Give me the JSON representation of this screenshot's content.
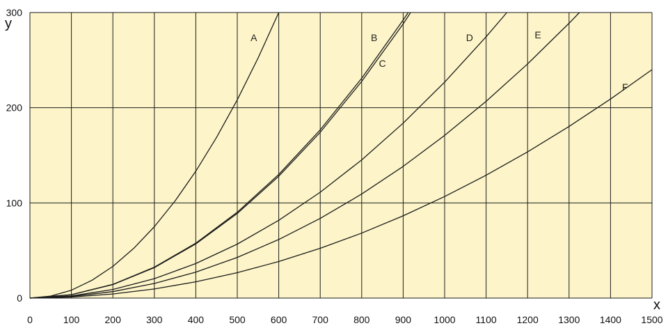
{
  "colors": {
    "plot_background": "#fdf5c9",
    "grid": "#1a1a1a",
    "curve": "#1a1a1a"
  },
  "chart_data": {
    "type": "line",
    "title": "",
    "xlabel": "x",
    "ylabel": "y",
    "xlim": [
      0,
      1500
    ],
    "ylim": [
      0,
      300
    ],
    "grid": true,
    "x_ticks": [
      0,
      100,
      200,
      300,
      400,
      500,
      600,
      700,
      800,
      900,
      1000,
      1100,
      1200,
      1300,
      1400,
      1500
    ],
    "y_ticks": [
      0,
      100,
      200,
      300
    ],
    "series": [
      {
        "name": "A",
        "x": [
          0,
          50,
          100,
          150,
          200,
          250,
          300,
          350,
          400,
          450,
          500,
          550,
          600
        ],
        "y": [
          0,
          2.1,
          8.3,
          18.8,
          33.3,
          52.1,
          75,
          102.1,
          133.3,
          168.8,
          208.3,
          252.1,
          300
        ]
      },
      {
        "name": "B",
        "x": [
          0,
          100,
          200,
          300,
          400,
          500,
          600,
          700,
          800,
          900,
          918
        ],
        "y": [
          0,
          3.6,
          14.2,
          32.0,
          56.9,
          88.9,
          128.0,
          174.2,
          227.6,
          288.0,
          300
        ]
      },
      {
        "name": "C",
        "x": [
          0,
          100,
          200,
          300,
          400,
          500,
          600,
          700,
          800,
          900,
          912
        ],
        "y": [
          0,
          3.6,
          14.4,
          32.5,
          57.7,
          90.2,
          129.9,
          176.8,
          230.9,
          292.2,
          300
        ]
      },
      {
        "name": "D",
        "x": [
          0,
          100,
          200,
          300,
          400,
          500,
          600,
          700,
          800,
          900,
          1000,
          1100,
          1150
        ],
        "y": [
          0,
          2.3,
          9.1,
          20.4,
          36.3,
          56.7,
          81.7,
          111.2,
          145.2,
          183.8,
          226.9,
          274.5,
          300
        ]
      },
      {
        "name": "E",
        "x": [
          0,
          100,
          200,
          300,
          400,
          500,
          600,
          700,
          800,
          900,
          1000,
          1100,
          1200,
          1300,
          1325
        ],
        "y": [
          0,
          1.7,
          6.8,
          15.4,
          27.3,
          42.7,
          61.5,
          83.7,
          109.3,
          138.4,
          170.9,
          206.7,
          246.0,
          288.7,
          300
        ]
      },
      {
        "name": "F",
        "x": [
          0,
          100,
          200,
          300,
          400,
          500,
          600,
          700,
          800,
          900,
          1000,
          1100,
          1200,
          1300,
          1400,
          1500
        ],
        "y": [
          0,
          1.1,
          4.3,
          9.6,
          17.1,
          26.7,
          38.4,
          52.3,
          68.3,
          86.4,
          106.7,
          129.1,
          153.6,
          180.3,
          209.1,
          240.0
        ]
      }
    ],
    "curve_labels": [
      {
        "text": "A",
        "x": 540,
        "y": 270
      },
      {
        "text": "B",
        "x": 830,
        "y": 270
      },
      {
        "text": "C",
        "x": 850,
        "y": 243
      },
      {
        "text": "D",
        "x": 1060,
        "y": 270
      },
      {
        "text": "E",
        "x": 1225,
        "y": 273
      },
      {
        "text": "F",
        "x": 1435,
        "y": 218
      }
    ]
  }
}
